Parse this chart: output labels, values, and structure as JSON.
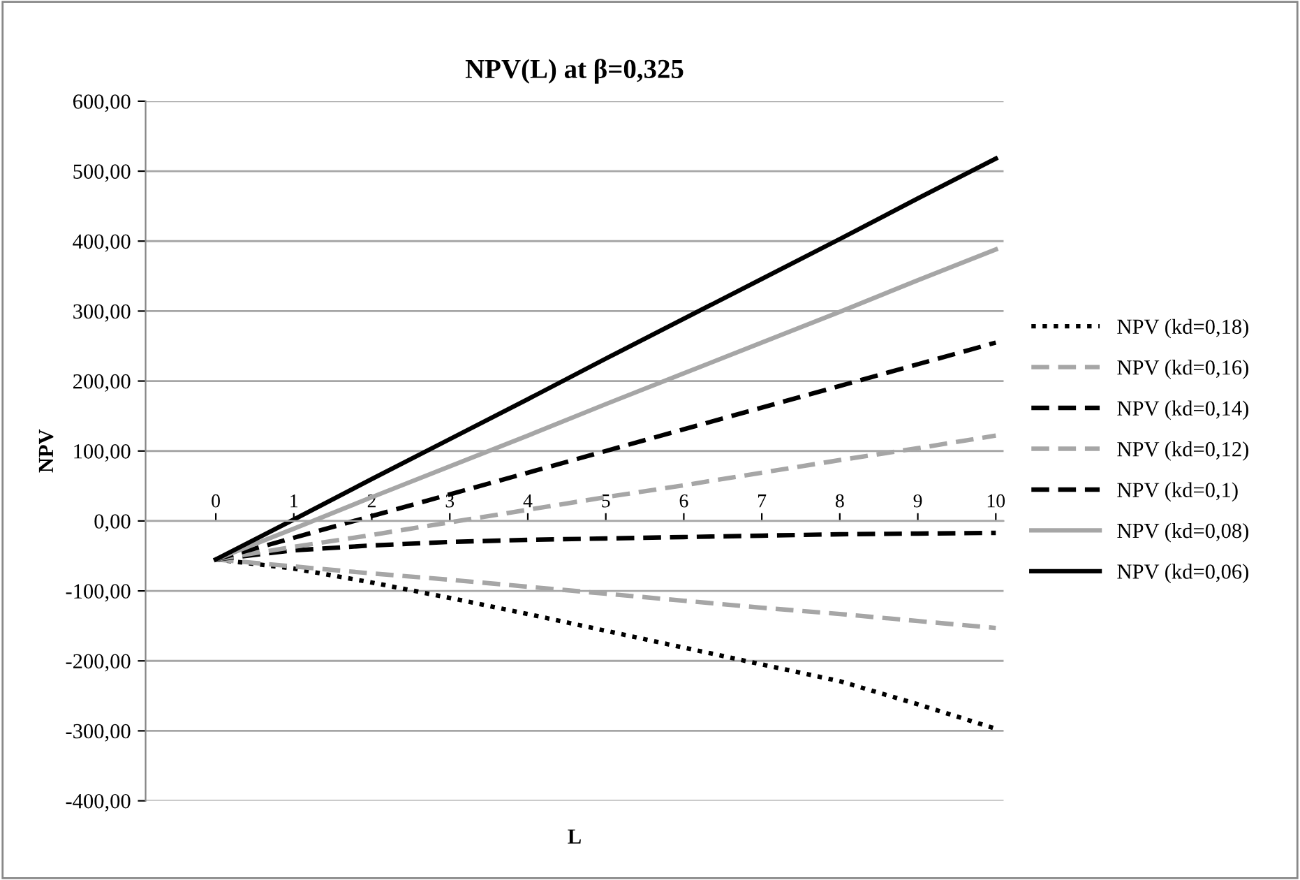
{
  "chart_data": {
    "type": "line",
    "title": "NPV(L) at β=0,325",
    "xlabel": "L",
    "ylabel": "NPV",
    "categories": [
      "0",
      "1",
      "2",
      "3",
      "4",
      "5",
      "6",
      "7",
      "8",
      "9",
      "10"
    ],
    "ylim": [
      -400,
      600
    ],
    "yticks": [
      {
        "value": -400,
        "label": "-400,00"
      },
      {
        "value": -300,
        "label": "-300,00"
      },
      {
        "value": -200,
        "label": "-200,00"
      },
      {
        "value": -100,
        "label": "-100,00"
      },
      {
        "value": 0,
        "label": "0,00"
      },
      {
        "value": 100,
        "label": "100,00"
      },
      {
        "value": 200,
        "label": "200,00"
      },
      {
        "value": 300,
        "label": "300,00"
      },
      {
        "value": 400,
        "label": "400,00"
      },
      {
        "value": 500,
        "label": "500,00"
      },
      {
        "value": 600,
        "label": "600,00"
      }
    ],
    "grid": "y",
    "legend": "right",
    "marker": "none",
    "series": [
      {
        "name": "NPV (kd=0,18)",
        "color": "#000000",
        "line_style": "dotted",
        "values": [
          -55,
          -68,
          -88,
          -110,
          -133,
          -157,
          -181,
          -205,
          -229,
          -262,
          -297
        ]
      },
      {
        "name": "NPV (kd=0,16)",
        "color": "#a6a6a6",
        "line_style": "dashed",
        "values": [
          -55,
          -65,
          -75,
          -84,
          -94,
          -104,
          -114,
          -124,
          -133,
          -143,
          -153
        ]
      },
      {
        "name": "NPV (kd=0,14)",
        "color": "#000000",
        "line_style": "dashed",
        "values": [
          -55,
          -42,
          -35,
          -30,
          -27,
          -25,
          -23,
          -21,
          -19,
          -18,
          -17
        ]
      },
      {
        "name": "NPV (kd=0,12)",
        "color": "#a6a6a6",
        "line_style": "dashed",
        "values": [
          -55,
          -37,
          -20,
          -2,
          16,
          34,
          51,
          69,
          87,
          104,
          122
        ]
      },
      {
        "name": "NPV (kd=0,1)",
        "color": "#000000",
        "line_style": "dashed",
        "values": [
          -55,
          -24,
          7,
          38,
          69,
          100,
          131,
          162,
          193,
          224,
          255
        ]
      },
      {
        "name": "NPV (kd=0,08)",
        "color": "#a6a6a6",
        "line_style": "solid",
        "values": [
          -55,
          -11,
          34,
          78,
          122,
          167,
          211,
          255,
          299,
          344,
          388
        ]
      },
      {
        "name": "NPV (kd=0,06)",
        "color": "#000000",
        "line_style": "solid",
        "values": [
          -55,
          2,
          60,
          117,
          174,
          232,
          289,
          346,
          403,
          461,
          518
        ]
      }
    ]
  }
}
